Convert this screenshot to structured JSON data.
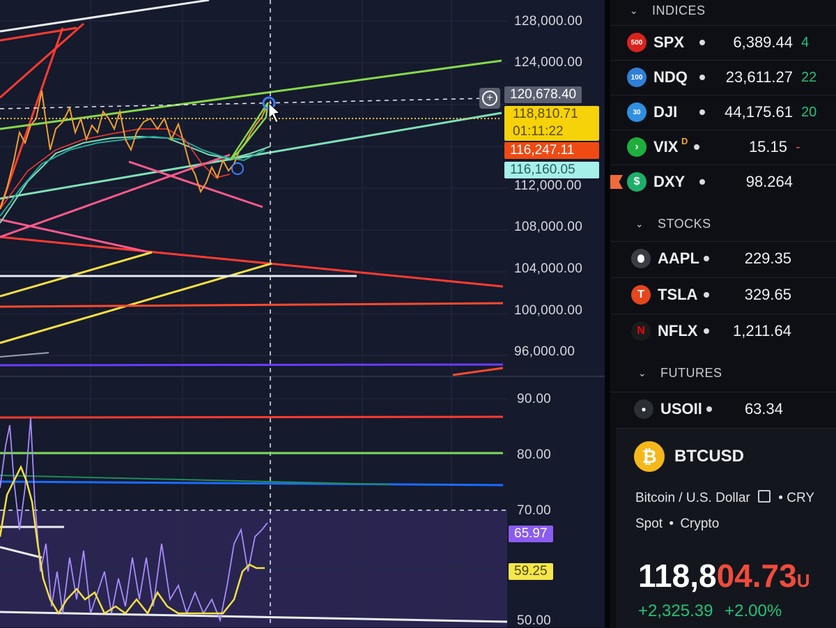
{
  "chart": {
    "price_scale": [
      "128,000.00",
      "124,000.00",
      "112,000.00",
      "108,000.00",
      "104,000.00",
      "100,000.00",
      "96,000.00"
    ],
    "osc_scale": [
      "90.00",
      "80.00",
      "70.00",
      "50.00"
    ],
    "tags": {
      "crosshair_price": "120,678.40",
      "last_price": "118,810.71",
      "countdown": "01:11:22",
      "level_orange": "116,247.11",
      "level_cyan": "116,160.05",
      "osc_purple": "65.97",
      "osc_yellow": "59.25"
    },
    "add_icon": "plus-circle-icon",
    "colors": {
      "up": "#26a69a",
      "down": "#ef5350",
      "green_line": "#7ed957",
      "red_line": "#ff3b30",
      "yellow_line": "#f5e042"
    }
  },
  "watchlist": {
    "sections": [
      {
        "title": "INDICES",
        "items": [
          {
            "badge": "500",
            "symbol": "SPX",
            "last": "6,389.44",
            "change": "4",
            "color": "#d9231d",
            "negative": false
          },
          {
            "badge": "100",
            "symbol": "NDQ",
            "last": "23,611.27",
            "change": "22",
            "color": "#2f7fd6",
            "negative": false
          },
          {
            "badge": "30",
            "symbol": "DJI",
            "last": "44,175.61",
            "change": "20",
            "color": "#2f8fe0",
            "negative": false
          },
          {
            "badge": "›",
            "symbol": "VIX",
            "flag": "D",
            "last": "15.15",
            "change": "-",
            "color": "#1fae3e",
            "negative": true
          },
          {
            "badge": "$",
            "symbol": "DXY",
            "last": "98.264",
            "change": "",
            "color": "#1fae6a",
            "negative": false
          }
        ]
      },
      {
        "title": "STOCKS",
        "items": [
          {
            "badge": "",
            "symbol": "AAPL",
            "last": "229.35",
            "change": "",
            "color": "#3a3d44",
            "negative": false
          },
          {
            "badge": "T",
            "symbol": "TSLA",
            "last": "329.65",
            "change": "",
            "color": "#e6461e",
            "negative": false
          },
          {
            "badge": "N",
            "symbol": "NFLX",
            "last": "1,211.64",
            "change": "",
            "color": "#1b1b1b",
            "negative": false
          }
        ]
      },
      {
        "title": "FUTURES",
        "items": [
          {
            "badge": "●",
            "symbol": "USOIl",
            "last": "63.34",
            "change": "",
            "color": "#2b2e34",
            "negative": false
          }
        ]
      }
    ]
  },
  "detail": {
    "symbol": "BTCUSD",
    "logo": "bitcoin-icon",
    "description": "Bitcoin / U.S. Dollar",
    "exchange": "CRY",
    "market": "Spot",
    "category": "Crypto",
    "price_main": "118,8",
    "price_tail": "04.73",
    "price_suffix": "U",
    "change_abs": "+2,325.39",
    "change_pct": "+2.00%"
  }
}
